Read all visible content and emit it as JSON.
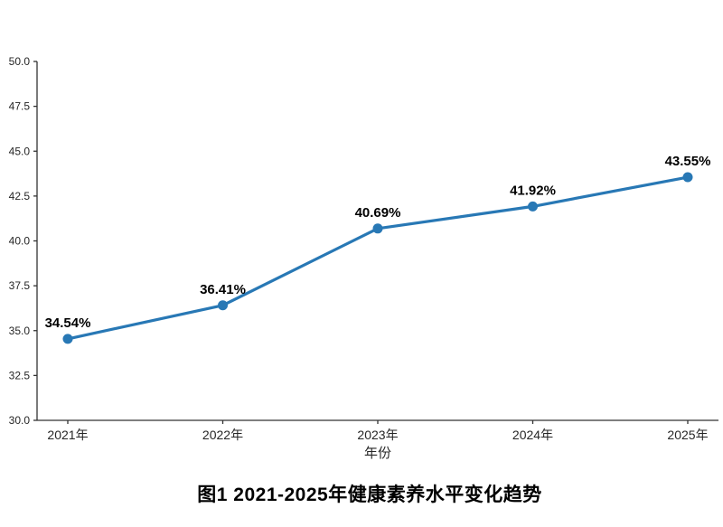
{
  "caption": "图1  2021-2025年健康素养水平变化趋势",
  "chart_data": {
    "type": "line",
    "title": "图1 2021-2025年健康素养水平变化趋势",
    "categories": [
      "2021年",
      "2022年",
      "2023年",
      "2024年",
      "2025年"
    ],
    "values": [
      34.54,
      36.41,
      40.69,
      41.92,
      43.55
    ],
    "point_labels": [
      "34.54%",
      "36.41%",
      "40.69%",
      "41.92%",
      "43.55%"
    ],
    "xlabel": "年份",
    "ylabel": "",
    "ylim": [
      30.0,
      50.0
    ],
    "ytick_step": 2.5,
    "ytick_labels": [
      "30.0",
      "32.5",
      "35.0",
      "37.5",
      "40.0",
      "42.5",
      "45.0",
      "47.5",
      "50.0"
    ],
    "grid": false,
    "legend": "none",
    "line_color": "#2878b5",
    "marker_color": "#2878b5",
    "axis_color": "#333333",
    "tick_label_color": "#262626",
    "point_label_color": "#000000",
    "background_color": "#ffffff"
  }
}
